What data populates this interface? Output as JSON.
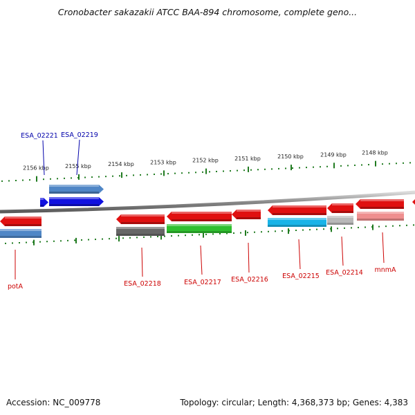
{
  "title": "Cronobacter sakazakii ATCC BAA-894 chromosome, complete geno...",
  "footer": {
    "accession": "Accession: NC_009778",
    "topology": "Topology: circular; Length: 4,368,373 bp; Genes: 4,383"
  },
  "colors": {
    "backbone": "#8a8a8a",
    "tick": "#1f7a1f",
    "label_top": "#0000aa",
    "label_bottom": "#cc0000"
  },
  "ticks": [
    "2156 kbp",
    "2155 kbp",
    "2154 kbp",
    "2153 kbp",
    "2152 kbp",
    "2151 kbp",
    "2150 kbp",
    "2149 kbp",
    "2148 kbp"
  ],
  "genes": [
    {
      "label": "ESA_02221",
      "strand": "top",
      "row": "outer",
      "color": "#4f86c6",
      "direction": "right"
    },
    {
      "label": "ESA_02219",
      "strand": "top",
      "row": "inner",
      "color": "#1010e0",
      "direction": "right"
    },
    {
      "label": "potA",
      "strand": "bottom",
      "row": "inner",
      "color": "#e01010",
      "direction": "left"
    },
    {
      "label": "ESA_02218",
      "strand": "bottom",
      "row": "inner",
      "color": "#e01010",
      "direction": "left"
    },
    {
      "label": "ESA_02217",
      "strand": "bottom",
      "row": "inner",
      "color": "#e01010",
      "direction": "left"
    },
    {
      "label": "ESA_02216",
      "strand": "bottom",
      "row": "inner",
      "color": "#e01010",
      "direction": "left"
    },
    {
      "label": "ESA_02215",
      "strand": "bottom",
      "row": "inner",
      "color": "#e01010",
      "direction": "left"
    },
    {
      "label": "ESA_02214",
      "strand": "bottom",
      "row": "inner",
      "color": "#e01010",
      "direction": "left"
    },
    {
      "label": "mnmA",
      "strand": "bottom",
      "row": "inner",
      "color": "#e01010",
      "direction": "left"
    }
  ],
  "feature_bars": [
    {
      "name": "potA-feature",
      "color": "#4f86c6"
    },
    {
      "name": "ESA_02218-feature",
      "color": "#666666"
    },
    {
      "name": "ESA_02217-feature",
      "color": "#2fbf2f"
    },
    {
      "name": "ESA_02215-feature",
      "color": "#19b4e8"
    },
    {
      "name": "ESA_02214-feature",
      "color": "#b8b8b8"
    },
    {
      "name": "mnmA-feature",
      "color": "#ef8f8f"
    }
  ]
}
